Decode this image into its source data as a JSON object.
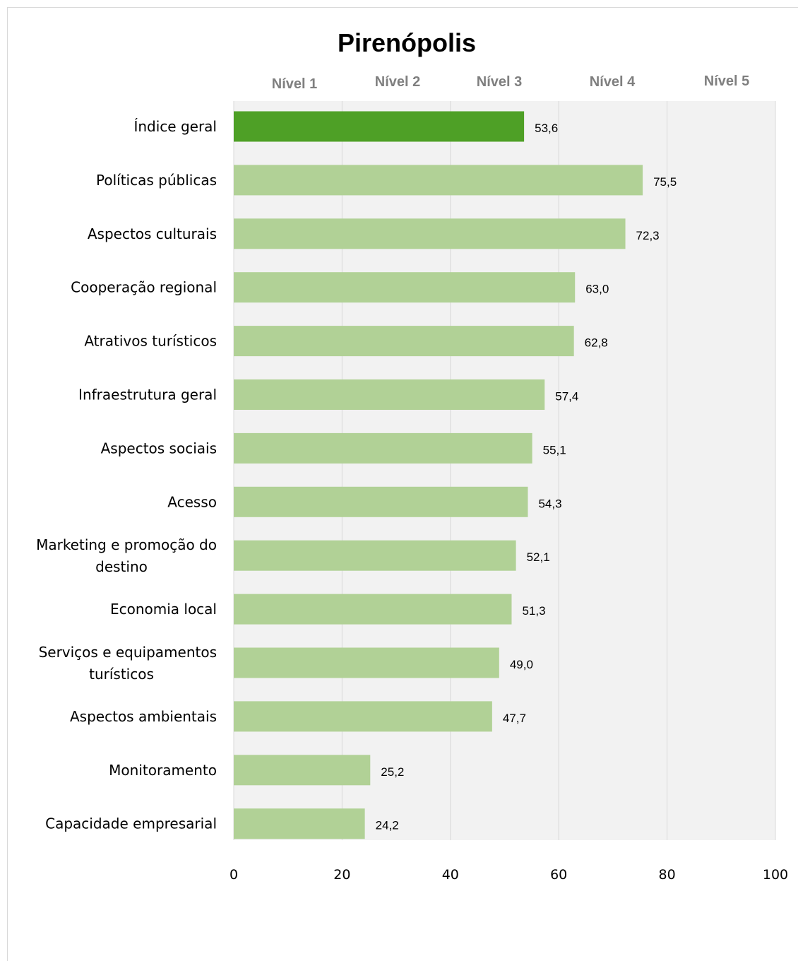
{
  "chart_data": {
    "type": "bar",
    "orientation": "horizontal",
    "title": "Pirenópolis",
    "levels": [
      "Nível 1",
      "Nível 2",
      "Nível 3",
      "Nível 4",
      "Nível 5"
    ],
    "categories": [
      "Índice geral",
      "Políticas públicas",
      "Aspectos culturais",
      "Cooperação regional",
      "Atrativos turísticos",
      "Infraestrutura geral",
      "Aspectos sociais",
      "Acesso",
      "Marketing e promoção do destino",
      "Economia local",
      "Serviços e equipamentos turísticos",
      "Aspectos ambientais",
      "Monitoramento",
      "Capacidade empresarial"
    ],
    "values": [
      53.6,
      75.5,
      72.3,
      63.0,
      62.8,
      57.4,
      55.1,
      54.3,
      52.1,
      51.3,
      49.0,
      47.7,
      25.2,
      24.2
    ],
    "value_labels": [
      "53,6",
      "75,5",
      "72,3",
      "63,0",
      "62,8",
      "57,4",
      "55,1",
      "54,3",
      "52,1",
      "51,3",
      "49,0",
      "47,7",
      "25,2",
      "24,2"
    ],
    "xlim": [
      0,
      100
    ],
    "xticks": [
      0,
      20,
      40,
      60,
      80,
      100
    ],
    "grid": true,
    "highlight_color": "#4ea026",
    "bar_color": "#b1d196",
    "plot_background": "#f2f2f2"
  }
}
